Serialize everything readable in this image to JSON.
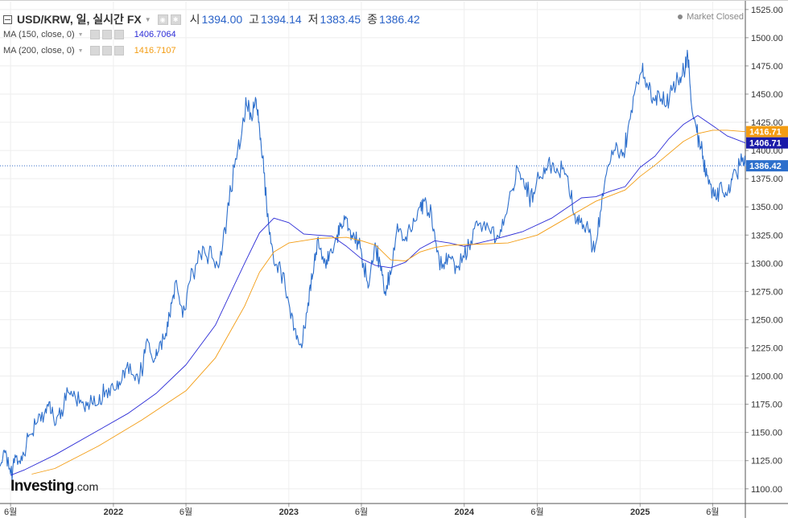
{
  "header": {
    "title": "USD/KRW, 일, 실시간 FX",
    "open_label": "시",
    "open_value": "1394.00",
    "high_label": "고",
    "high_value": "1394.14",
    "low_label": "저",
    "low_value": "1383.45",
    "close_label": "종",
    "close_value": "1386.42"
  },
  "indicators": [
    {
      "label": "MA (150, close, 0)",
      "value": "1406.7064",
      "color": "#2b2bd6"
    },
    {
      "label": "MA (200, close, 0)",
      "value": "1416.7107",
      "color": "#f39c12"
    }
  ],
  "market_status": "Market Closed",
  "logo": {
    "main": "Investing",
    "suffix": ".com"
  },
  "colors": {
    "price_line": "#2d6fcc",
    "ma150": "#2b2bd6",
    "ma200": "#f39c12",
    "last_price_line": "#3a6fc8",
    "grid": "#eeeeee",
    "axis": "#333333"
  },
  "chart_data": {
    "type": "line",
    "title": "USD/KRW, 일, 실시간 FX",
    "xlabel": "",
    "ylabel": "",
    "ylim": [
      1087,
      1532
    ],
    "x_range": [
      "2021-05-10",
      "2025-08-08"
    ],
    "y_ticks": [
      1100,
      1125,
      1150,
      1175,
      1200,
      1225,
      1250,
      1275,
      1300,
      1325,
      1350,
      1375,
      1400,
      1425,
      1450,
      1475,
      1500,
      1525
    ],
    "x_ticks": [
      {
        "label": "6월",
        "date": "2021-06-01"
      },
      {
        "label": "2022",
        "date": "2022-01-01"
      },
      {
        "label": "6월",
        "date": "2022-06-01"
      },
      {
        "label": "2023",
        "date": "2023-01-01"
      },
      {
        "label": "6월",
        "date": "2023-06-01"
      },
      {
        "label": "2024",
        "date": "2024-01-01"
      },
      {
        "label": "6월",
        "date": "2024-06-01"
      },
      {
        "label": "2025",
        "date": "2025-01-01"
      },
      {
        "label": "6월",
        "date": "2025-06-01"
      }
    ],
    "grid": true,
    "legend": "top-left",
    "series": [
      {
        "name": "USD/KRW",
        "color": "#2d6fcc",
        "points": [
          [
            "2021-05-10",
            1120
          ],
          [
            "2021-05-20",
            1132
          ],
          [
            "2021-06-01",
            1113
          ],
          [
            "2021-06-12",
            1128
          ],
          [
            "2021-06-25",
            1125
          ],
          [
            "2021-07-10",
            1148
          ],
          [
            "2021-07-25",
            1158
          ],
          [
            "2021-08-10",
            1166
          ],
          [
            "2021-08-20",
            1177
          ],
          [
            "2021-09-01",
            1156
          ],
          [
            "2021-09-15",
            1170
          ],
          [
            "2021-10-01",
            1185
          ],
          [
            "2021-10-15",
            1179
          ],
          [
            "2021-11-01",
            1172
          ],
          [
            "2021-11-15",
            1183
          ],
          [
            "2021-12-01",
            1175
          ],
          [
            "2021-12-15",
            1186
          ],
          [
            "2022-01-01",
            1189
          ],
          [
            "2022-01-15",
            1192
          ],
          [
            "2022-01-28",
            1207
          ],
          [
            "2022-02-15",
            1196
          ],
          [
            "2022-03-01",
            1205
          ],
          [
            "2022-03-10",
            1230
          ],
          [
            "2022-03-25",
            1212
          ],
          [
            "2022-04-05",
            1222
          ],
          [
            "2022-04-20",
            1238
          ],
          [
            "2022-05-01",
            1265
          ],
          [
            "2022-05-12",
            1285
          ],
          [
            "2022-05-25",
            1252
          ],
          [
            "2022-06-10",
            1285
          ],
          [
            "2022-06-25",
            1300
          ],
          [
            "2022-07-10",
            1310
          ],
          [
            "2022-07-25",
            1305
          ],
          [
            "2022-08-10",
            1300
          ],
          [
            "2022-08-25",
            1340
          ],
          [
            "2022-09-10",
            1385
          ],
          [
            "2022-09-25",
            1415
          ],
          [
            "2022-10-05",
            1440
          ],
          [
            "2022-10-15",
            1430
          ],
          [
            "2022-10-25",
            1445
          ],
          [
            "2022-11-01",
            1420
          ],
          [
            "2022-11-10",
            1380
          ],
          [
            "2022-11-20",
            1335
          ],
          [
            "2022-12-01",
            1300
          ],
          [
            "2022-12-15",
            1295
          ],
          [
            "2023-01-01",
            1265
          ],
          [
            "2023-01-15",
            1242
          ],
          [
            "2023-01-28",
            1225
          ],
          [
            "2023-02-10",
            1265
          ],
          [
            "2023-02-20",
            1290
          ],
          [
            "2023-03-01",
            1320
          ],
          [
            "2023-03-15",
            1300
          ],
          [
            "2023-03-25",
            1302
          ],
          [
            "2023-04-10",
            1322
          ],
          [
            "2023-04-20",
            1335
          ],
          [
            "2023-05-01",
            1340
          ],
          [
            "2023-05-12",
            1325
          ],
          [
            "2023-05-25",
            1320
          ],
          [
            "2023-06-05",
            1300
          ],
          [
            "2023-06-15",
            1278
          ],
          [
            "2023-06-28",
            1315
          ],
          [
            "2023-07-10",
            1300
          ],
          [
            "2023-07-20",
            1275
          ],
          [
            "2023-08-01",
            1290
          ],
          [
            "2023-08-15",
            1335
          ],
          [
            "2023-08-30",
            1320
          ],
          [
            "2023-09-15",
            1330
          ],
          [
            "2023-10-01",
            1350
          ],
          [
            "2023-10-10",
            1355
          ],
          [
            "2023-10-25",
            1345
          ],
          [
            "2023-11-05",
            1310
          ],
          [
            "2023-11-20",
            1295
          ],
          [
            "2023-12-01",
            1305
          ],
          [
            "2023-12-15",
            1298
          ],
          [
            "2024-01-01",
            1305
          ],
          [
            "2024-01-15",
            1320
          ],
          [
            "2024-02-01",
            1335
          ],
          [
            "2024-02-20",
            1332
          ],
          [
            "2024-03-10",
            1325
          ],
          [
            "2024-03-25",
            1340
          ],
          [
            "2024-04-10",
            1365
          ],
          [
            "2024-04-20",
            1385
          ],
          [
            "2024-05-01",
            1375
          ],
          [
            "2024-05-15",
            1360
          ],
          [
            "2024-05-28",
            1365
          ],
          [
            "2024-06-15",
            1385
          ],
          [
            "2024-06-28",
            1385
          ],
          [
            "2024-07-10",
            1380
          ],
          [
            "2024-07-25",
            1385
          ],
          [
            "2024-08-05",
            1370
          ],
          [
            "2024-08-20",
            1335
          ],
          [
            "2024-09-01",
            1340
          ],
          [
            "2024-09-15",
            1330
          ],
          [
            "2024-09-28",
            1310
          ],
          [
            "2024-10-10",
            1345
          ],
          [
            "2024-10-25",
            1385
          ],
          [
            "2024-11-10",
            1400
          ],
          [
            "2024-11-25",
            1395
          ],
          [
            "2024-12-05",
            1410
          ],
          [
            "2024-12-20",
            1450
          ],
          [
            "2025-01-05",
            1470
          ],
          [
            "2025-01-15",
            1460
          ],
          [
            "2025-01-28",
            1447
          ],
          [
            "2025-02-10",
            1450
          ],
          [
            "2025-02-25",
            1440
          ],
          [
            "2025-03-10",
            1455
          ],
          [
            "2025-03-25",
            1465
          ],
          [
            "2025-04-05",
            1472
          ],
          [
            "2025-04-10",
            1485
          ],
          [
            "2025-04-18",
            1440
          ],
          [
            "2025-04-28",
            1420
          ],
          [
            "2025-05-05",
            1405
          ],
          [
            "2025-05-12",
            1395
          ],
          [
            "2025-05-20",
            1378
          ],
          [
            "2025-06-01",
            1365
          ],
          [
            "2025-06-10",
            1358
          ],
          [
            "2025-06-20",
            1368
          ],
          [
            "2025-07-01",
            1360
          ],
          [
            "2025-07-10",
            1375
          ],
          [
            "2025-07-20",
            1380
          ],
          [
            "2025-08-01",
            1390
          ],
          [
            "2025-08-08",
            1386.42
          ]
        ]
      },
      {
        "name": "MA (150, close, 0)",
        "color": "#2b2bd6",
        "points": [
          [
            "2021-06-01",
            1112
          ],
          [
            "2021-07-01",
            1117
          ],
          [
            "2021-09-01",
            1130
          ],
          [
            "2021-12-01",
            1152
          ],
          [
            "2022-02-01",
            1167
          ],
          [
            "2022-04-01",
            1185
          ],
          [
            "2022-06-01",
            1210
          ],
          [
            "2022-08-01",
            1245
          ],
          [
            "2022-09-01",
            1273
          ],
          [
            "2022-10-01",
            1300
          ],
          [
            "2022-11-01",
            1327
          ],
          [
            "2022-12-01",
            1340
          ],
          [
            "2023-01-01",
            1336
          ],
          [
            "2023-02-01",
            1326
          ],
          [
            "2023-03-01",
            1325
          ],
          [
            "2023-04-01",
            1324
          ],
          [
            "2023-05-01",
            1315
          ],
          [
            "2023-06-01",
            1304
          ],
          [
            "2023-07-01",
            1298
          ],
          [
            "2023-08-01",
            1296
          ],
          [
            "2023-09-01",
            1301
          ],
          [
            "2023-10-01",
            1313
          ],
          [
            "2023-11-01",
            1320
          ],
          [
            "2023-12-01",
            1318
          ],
          [
            "2024-01-01",
            1315
          ],
          [
            "2024-03-01",
            1321
          ],
          [
            "2024-05-01",
            1328
          ],
          [
            "2024-07-01",
            1340
          ],
          [
            "2024-09-01",
            1358
          ],
          [
            "2024-10-01",
            1359
          ],
          [
            "2024-11-01",
            1364
          ],
          [
            "2024-12-01",
            1368
          ],
          [
            "2025-01-01",
            1385
          ],
          [
            "2025-02-01",
            1395
          ],
          [
            "2025-03-01",
            1410
          ],
          [
            "2025-04-01",
            1423
          ],
          [
            "2025-05-01",
            1431
          ],
          [
            "2025-06-01",
            1422
          ],
          [
            "2025-07-01",
            1413
          ],
          [
            "2025-08-08",
            1406.7064
          ]
        ]
      },
      {
        "name": "MA (200, close, 0)",
        "color": "#f39c12",
        "points": [
          [
            "2021-07-15",
            1113
          ],
          [
            "2021-09-01",
            1118
          ],
          [
            "2021-12-01",
            1138
          ],
          [
            "2022-03-01",
            1161
          ],
          [
            "2022-06-01",
            1187
          ],
          [
            "2022-08-01",
            1216
          ],
          [
            "2022-10-01",
            1262
          ],
          [
            "2022-11-01",
            1292
          ],
          [
            "2022-12-01",
            1310
          ],
          [
            "2023-01-01",
            1318
          ],
          [
            "2023-03-01",
            1322
          ],
          [
            "2023-05-01",
            1323
          ],
          [
            "2023-06-01",
            1320
          ],
          [
            "2023-07-01",
            1316
          ],
          [
            "2023-08-01",
            1303
          ],
          [
            "2023-09-01",
            1302
          ],
          [
            "2023-10-01",
            1310
          ],
          [
            "2023-11-01",
            1314
          ],
          [
            "2023-12-01",
            1316
          ],
          [
            "2024-02-01",
            1317
          ],
          [
            "2024-04-01",
            1318
          ],
          [
            "2024-06-01",
            1325
          ],
          [
            "2024-08-01",
            1340
          ],
          [
            "2024-10-01",
            1355
          ],
          [
            "2024-12-01",
            1365
          ],
          [
            "2025-01-01",
            1377
          ],
          [
            "2025-02-01",
            1387
          ],
          [
            "2025-03-01",
            1397
          ],
          [
            "2025-04-01",
            1408
          ],
          [
            "2025-05-01",
            1415
          ],
          [
            "2025-06-01",
            1418
          ],
          [
            "2025-07-01",
            1418
          ],
          [
            "2025-08-08",
            1416.7107
          ]
        ]
      }
    ],
    "last_price_label": "1386.42",
    "ma150_label": "1406.71",
    "ma200_label": "1416.71"
  }
}
